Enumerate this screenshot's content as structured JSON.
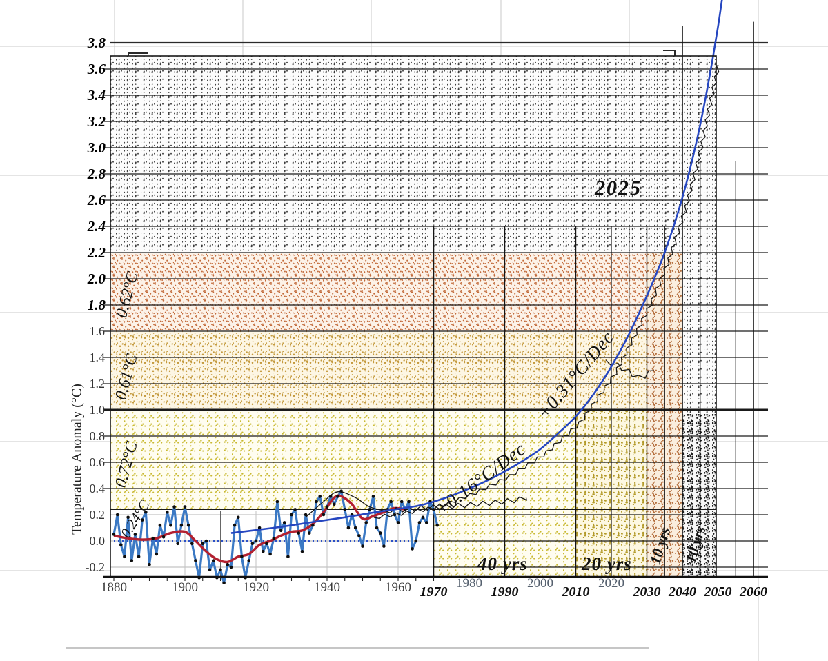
{
  "page": {
    "background": "#ffffff",
    "grid_color": "#c9c9c9",
    "accent_blue": "#2546c0",
    "accent_red": "#b22030"
  },
  "chart_data": {
    "type": "line",
    "title": "",
    "xlabel": "",
    "ylabel": "Temperature Anomaly (°C)",
    "x_range": [
      1880,
      2060
    ],
    "y_range": [
      -0.2,
      3.8
    ],
    "grid": "on",
    "x_ticks_source_chart": [
      "1880",
      "1900",
      "1920",
      "1940",
      "1960"
    ],
    "x_ticks_source_chart_light": [
      "1980",
      "2000",
      "2020"
    ],
    "x_ticks_handdrawn": [
      "1970",
      "1990",
      "2010",
      "2030",
      "2040",
      "2050",
      "2060"
    ],
    "y_ticks_source_chart": [
      "-0.2",
      "0.0",
      "0.2",
      "0.4",
      "0.6",
      "0.8",
      "1.0",
      "1.2",
      "1.4",
      "1.6"
    ],
    "y_ticks_handdrawn": [
      "1.8",
      "2.0",
      "2.2",
      "2.4",
      "2.6",
      "2.8",
      "3.0",
      "3.2",
      "3.4",
      "3.6",
      "3.8"
    ],
    "series": [
      {
        "name": "annual-temperature",
        "type": "jagged-with-dots",
        "color": "#3b79c4",
        "dot_color": "#0d0d0d",
        "points": [
          [
            1880,
            0.05
          ],
          [
            1881,
            0.2
          ],
          [
            1882,
            -0.03
          ],
          [
            1883,
            -0.12
          ],
          [
            1884,
            0.18
          ],
          [
            1885,
            -0.15
          ],
          [
            1886,
            0.05
          ],
          [
            1887,
            -0.12
          ],
          [
            1888,
            0.16
          ],
          [
            1889,
            0.22
          ],
          [
            1890,
            -0.18
          ],
          [
            1891,
            0.02
          ],
          [
            1892,
            -0.1
          ],
          [
            1893,
            0.12
          ],
          [
            1894,
            0.03
          ],
          [
            1895,
            0.22
          ],
          [
            1896,
            0.12
          ],
          [
            1897,
            0.26
          ],
          [
            1898,
            -0.02
          ],
          [
            1899,
            0.12
          ],
          [
            1900,
            0.26
          ],
          [
            1901,
            0.12
          ],
          [
            1902,
            -0.02
          ],
          [
            1903,
            -0.15
          ],
          [
            1904,
            -0.28
          ],
          [
            1905,
            -0.02
          ],
          [
            1906,
            0.0
          ],
          [
            1907,
            -0.22
          ],
          [
            1908,
            -0.15
          ],
          [
            1909,
            -0.28
          ],
          [
            1910,
            -0.22
          ],
          [
            1911,
            -0.32
          ],
          [
            1912,
            -0.18
          ],
          [
            1913,
            -0.2
          ],
          [
            1914,
            0.12
          ],
          [
            1915,
            0.18
          ],
          [
            1916,
            -0.12
          ],
          [
            1917,
            -0.28
          ],
          [
            1918,
            -0.15
          ],
          [
            1919,
            -0.02
          ],
          [
            1920,
            0.0
          ],
          [
            1921,
            0.1
          ],
          [
            1922,
            -0.08
          ],
          [
            1923,
            -0.02
          ],
          [
            1924,
            -0.1
          ],
          [
            1925,
            0.02
          ],
          [
            1926,
            0.3
          ],
          [
            1927,
            0.08
          ],
          [
            1928,
            0.14
          ],
          [
            1929,
            -0.12
          ],
          [
            1930,
            0.2
          ],
          [
            1931,
            0.24
          ],
          [
            1932,
            0.06
          ],
          [
            1933,
            -0.08
          ],
          [
            1934,
            0.2
          ],
          [
            1935,
            0.06
          ],
          [
            1936,
            0.12
          ],
          [
            1937,
            0.3
          ],
          [
            1938,
            0.34
          ],
          [
            1939,
            0.2
          ],
          [
            1940,
            0.26
          ],
          [
            1941,
            0.34
          ],
          [
            1942,
            0.28
          ],
          [
            1943,
            0.34
          ],
          [
            1944,
            0.38
          ],
          [
            1945,
            0.24
          ],
          [
            1946,
            0.1
          ],
          [
            1947,
            0.2
          ],
          [
            1948,
            0.1
          ],
          [
            1949,
            0.04
          ],
          [
            1950,
            -0.04
          ],
          [
            1951,
            0.14
          ],
          [
            1952,
            0.24
          ],
          [
            1953,
            0.34
          ],
          [
            1954,
            0.1
          ],
          [
            1955,
            0.06
          ],
          [
            1956,
            -0.04
          ],
          [
            1957,
            0.24
          ],
          [
            1958,
            0.3
          ],
          [
            1959,
            0.2
          ],
          [
            1960,
            0.14
          ],
          [
            1961,
            0.3
          ],
          [
            1962,
            0.24
          ],
          [
            1963,
            0.3
          ],
          [
            1964,
            -0.06
          ],
          [
            1965,
            0.0
          ],
          [
            1966,
            0.14
          ],
          [
            1967,
            0.18
          ],
          [
            1968,
            0.14
          ],
          [
            1969,
            0.3
          ],
          [
            1970,
            0.24
          ],
          [
            1971,
            0.12
          ]
        ]
      },
      {
        "name": "five-year-mean",
        "type": "smooth",
        "color": "#b22030",
        "points": [
          [
            1880,
            0.04
          ],
          [
            1884,
            0.02
          ],
          [
            1888,
            0.01
          ],
          [
            1892,
            0.02
          ],
          [
            1896,
            0.06
          ],
          [
            1900,
            0.07
          ],
          [
            1903,
            0.0
          ],
          [
            1906,
            -0.08
          ],
          [
            1909,
            -0.14
          ],
          [
            1912,
            -0.16
          ],
          [
            1915,
            -0.12
          ],
          [
            1918,
            -0.1
          ],
          [
            1921,
            -0.03
          ],
          [
            1924,
            0.0
          ],
          [
            1927,
            0.04
          ],
          [
            1930,
            0.07
          ],
          [
            1933,
            0.08
          ],
          [
            1936,
            0.13
          ],
          [
            1939,
            0.22
          ],
          [
            1942,
            0.33
          ],
          [
            1944,
            0.34
          ],
          [
            1947,
            0.28
          ],
          [
            1950,
            0.17
          ],
          [
            1953,
            0.19
          ],
          [
            1956,
            0.22
          ],
          [
            1959,
            0.25
          ],
          [
            1962,
            0.24
          ]
        ]
      },
      {
        "name": "zero-baseline",
        "type": "dotted",
        "color": "#2b50c8",
        "points": [
          [
            1880,
            0.0
          ],
          [
            1966,
            0.0
          ]
        ]
      },
      {
        "name": "exponential-extrapolation",
        "type": "smooth",
        "color": "#2546c0",
        "points": [
          [
            1913,
            0.06
          ],
          [
            1925,
            0.1
          ],
          [
            1935,
            0.14
          ],
          [
            1945,
            0.18
          ],
          [
            1955,
            0.225
          ],
          [
            1965,
            0.265
          ],
          [
            1970,
            0.3
          ],
          [
            1975,
            0.345
          ],
          [
            1980,
            0.4
          ],
          [
            1985,
            0.46
          ],
          [
            1990,
            0.53
          ],
          [
            1995,
            0.61
          ],
          [
            2000,
            0.7
          ],
          [
            2005,
            0.82
          ],
          [
            2010,
            0.95
          ],
          [
            2015,
            1.12
          ],
          [
            2020,
            1.33
          ],
          [
            2025,
            1.58
          ],
          [
            2030,
            1.87
          ],
          [
            2035,
            2.2
          ],
          [
            2040,
            2.62
          ],
          [
            2044,
            3.05
          ],
          [
            2047,
            3.45
          ],
          [
            2050,
            3.92
          ],
          [
            2052,
            4.3
          ]
        ]
      },
      {
        "name": "step-line-along-curve",
        "type": "zigzag",
        "color": "#161616",
        "points": [
          [
            1952,
            0.2
          ],
          [
            1960,
            0.23
          ],
          [
            1970,
            0.28
          ],
          [
            1980,
            0.38
          ],
          [
            1990,
            0.51
          ],
          [
            2000,
            0.68
          ],
          [
            2010,
            0.92
          ],
          [
            2020,
            1.3
          ],
          [
            2030,
            1.83
          ],
          [
            2035,
            2.16
          ],
          [
            2040,
            2.58
          ],
          [
            2044,
            3.0
          ],
          [
            2047,
            3.4
          ],
          [
            2049,
            3.65
          ]
        ]
      },
      {
        "name": "sawtooth-plateau",
        "type": "zigzag",
        "color": "#161616",
        "points": [
          [
            1956,
            0.23
          ],
          [
            1964,
            0.245
          ],
          [
            1972,
            0.26
          ],
          [
            1980,
            0.275
          ],
          [
            1988,
            0.295
          ],
          [
            1994,
            0.315
          ],
          [
            1996,
            0.33
          ]
        ]
      },
      {
        "name": "sawtooth-branch",
        "type": "zigzag",
        "color": "#161616",
        "points": [
          [
            2018.5,
            1.38
          ],
          [
            2023,
            1.32
          ],
          [
            2028,
            1.24
          ],
          [
            2032,
            1.3
          ]
        ]
      },
      {
        "name": "bump-1940s",
        "type": "smooth",
        "color": "#161616",
        "points": [
          [
            1934,
            0.18
          ],
          [
            1939,
            0.3
          ],
          [
            1943,
            0.375
          ],
          [
            1948,
            0.33
          ],
          [
            1952,
            0.26
          ],
          [
            1957,
            0.225
          ]
        ]
      }
    ],
    "horizontal_bands": [
      {
        "name": "yellow-band",
        "label": "0.72°C",
        "value_from": 0.24,
        "value_to": 1.0,
        "bg": "#fffdf0",
        "dot": "#c9b931",
        "density": 5
      },
      {
        "name": "tan-band",
        "label": "0.61°C",
        "value_from": 1.0,
        "value_to": 1.6,
        "bg": "#fdf6e4",
        "dot": "#c49a3e",
        "density": 8
      },
      {
        "name": "orange-band",
        "label": "0.62°C",
        "value_from": 1.6,
        "value_to": 2.2,
        "bg": "#fcf2e8",
        "dot": "#c26a3a",
        "density": 8
      },
      {
        "name": "gray-region",
        "label": "",
        "value_from": 2.2,
        "value_to": 3.7,
        "bg": "#fcfcfc",
        "dot": "#3a3a3a",
        "density": 6
      }
    ],
    "vertical_bands": [
      {
        "name": "span-40yrs",
        "label": "40 yrs",
        "year_from": 1970,
        "year_to": 2010,
        "bg": "#fffdf0",
        "dot": "#c9b931",
        "density": 5
      },
      {
        "name": "span-20yrs",
        "label": "20 yrs",
        "year_from": 2010,
        "year_to": 2030,
        "bg": "#fdf8e2",
        "dot": "#b39a2a",
        "density": 9
      },
      {
        "name": "span-10yrs-a",
        "label": "10 yrs",
        "year_from": 2030,
        "year_to": 2040,
        "bg": "#faeede",
        "dot": "#b5703f",
        "density": 9
      },
      {
        "name": "span-10yrs-b",
        "label": "10 yrs",
        "year_from": 2040,
        "year_to": 2050,
        "bg": "#f8f8f8",
        "dot": "#1c1c1c",
        "density": 11
      }
    ],
    "vertical_lines": [
      {
        "year": 1970,
        "v_top": 2.4,
        "w": 1.5
      },
      {
        "year": 1990,
        "v_top": 2.4,
        "w": 1.4
      },
      {
        "year": 2010,
        "v_top": 2.4,
        "w": 1.4
      },
      {
        "year": 2020,
        "v_top": 2.4,
        "w": 1.2
      },
      {
        "year": 2025,
        "v_top": 2.4,
        "w": 1.2
      },
      {
        "year": 2030,
        "v_top": 2.4,
        "w": 1.4
      },
      {
        "year": 2035,
        "v_top": 2.4,
        "w": 1.2
      },
      {
        "year": 2045,
        "v_top": 2.9,
        "w": 1.2
      },
      {
        "year": 2055,
        "v_top": 2.9,
        "w": 1.2
      },
      {
        "year": 2040,
        "v_top": 3.93,
        "w": 1.6
      },
      {
        "year": 2060,
        "v_top": 3.96,
        "w": 1.6
      }
    ],
    "annotations": {
      "peak_year": "2025",
      "rate_recent": "+0.16°C/Dec",
      "rate_future": "+0.31°C/Dec",
      "span_40": "40 yrs",
      "span_20": "20 yrs",
      "span_10a": "10 yrs",
      "span_10b": "10 yrs",
      "band_low": "0.24°C",
      "band_072": "0.72°C",
      "band_061": "0.61°C",
      "band_062": "0.62°C",
      "ylabel": "Temperature Anomaly (°C)"
    }
  }
}
